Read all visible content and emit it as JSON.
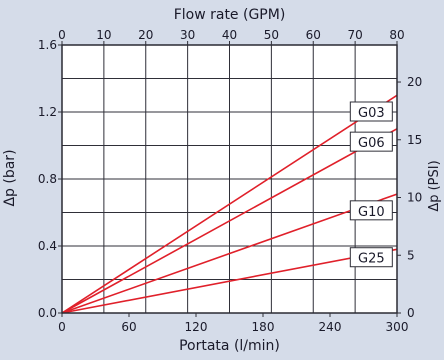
{
  "chart_data": {
    "type": "line",
    "title": "",
    "x_top_label": "Flow rate (GPM)",
    "x_bottom_label": "Portata (l/min)",
    "y_left_label": "Δp (bar)",
    "y_right_label": "Δp (PSI)",
    "x_bottom_range": [
      0,
      300
    ],
    "x_bottom_ticks": [
      "0",
      "60",
      "120",
      "180",
      "240",
      "300"
    ],
    "x_top_range": [
      0,
      80
    ],
    "x_top_ticks": [
      "0",
      "10",
      "20",
      "30",
      "40",
      "50",
      "60",
      "70",
      "80"
    ],
    "y_left_range": [
      0,
      1.6
    ],
    "y_left_ticks": [
      "0.0",
      "0.4",
      "0.8",
      "1.2",
      "1.6"
    ],
    "y_right_ticks": [
      {
        "label": "0",
        "psi": 0
      },
      {
        "label": "5",
        "psi": 5
      },
      {
        "label": "10",
        "psi": 10
      },
      {
        "label": "15",
        "psi": 15
      },
      {
        "label": "20",
        "psi": 20
      }
    ],
    "grid": true,
    "series": [
      {
        "name": "G03",
        "x": [
          0,
          300
        ],
        "y": [
          0,
          1.3
        ],
        "color": "#e0202a"
      },
      {
        "name": "G06",
        "x": [
          0,
          300
        ],
        "y": [
          0,
          1.1
        ],
        "color": "#e0202a"
      },
      {
        "name": "G10",
        "x": [
          0,
          300
        ],
        "y": [
          0,
          0.71
        ],
        "color": "#e0202a"
      },
      {
        "name": "G25",
        "x": [
          0,
          300
        ],
        "y": [
          0,
          0.38
        ],
        "color": "#e0202a"
      }
    ],
    "series_labels": [
      {
        "name": "G03",
        "at_x": 277,
        "at_y": 1.2
      },
      {
        "name": "G06",
        "at_x": 277,
        "at_y": 1.02
      },
      {
        "name": "G10",
        "at_x": 277,
        "at_y": 0.61
      },
      {
        "name": "G25",
        "at_x": 277,
        "at_y": 0.33
      }
    ]
  }
}
